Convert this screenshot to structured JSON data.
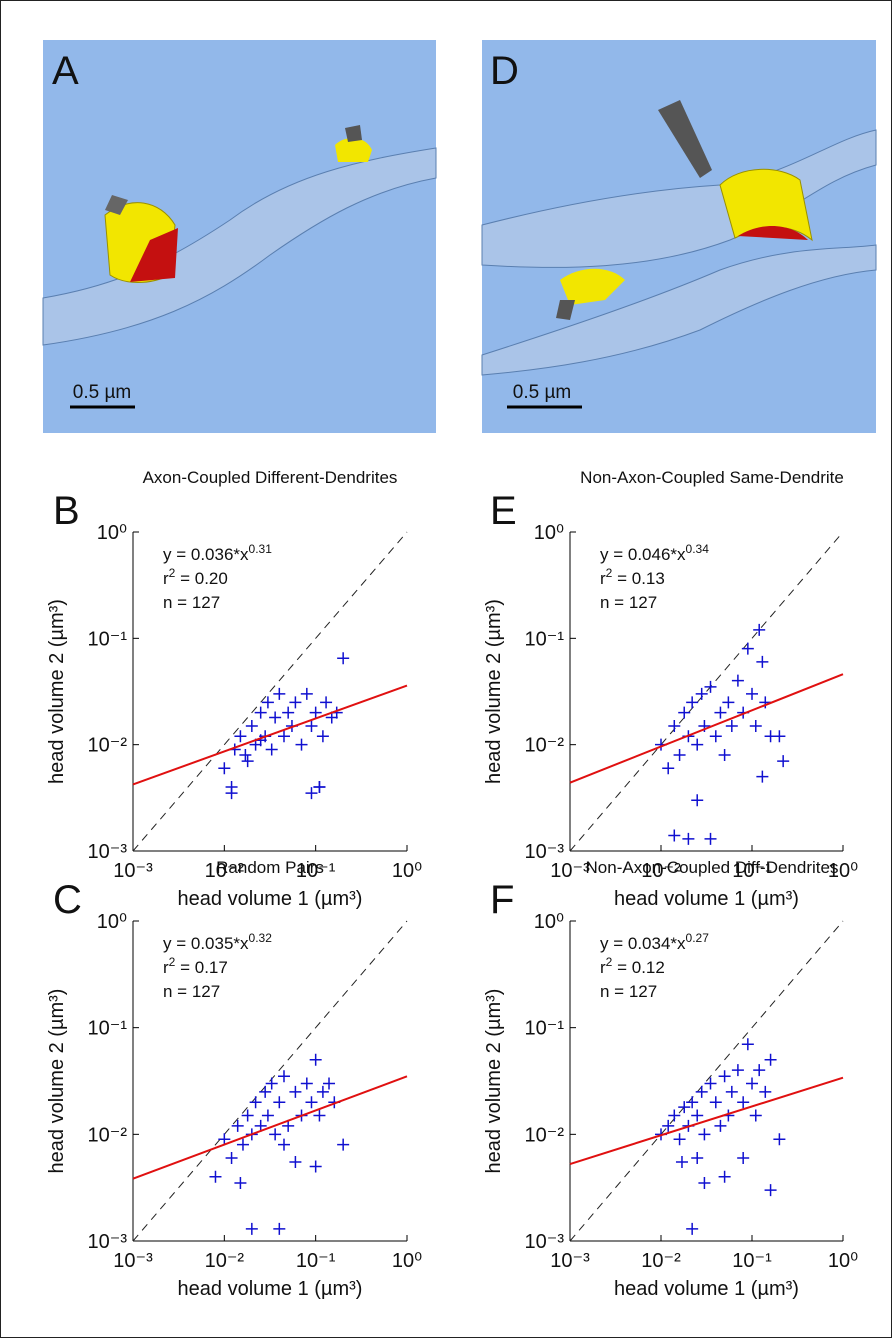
{
  "images": [
    {
      "panel": "A",
      "scale_bar": "0.5 µm"
    },
    {
      "panel": "D",
      "scale_bar": "0.5 µm"
    }
  ],
  "chart_data": [
    {
      "type": "scatter",
      "panel": "B",
      "title": "Axon-Coupled Different-Dendrites",
      "xlabel": "head volume 1 (µm³)",
      "ylabel": "head volume 2 (µm³)",
      "log_x": true,
      "log_y": true,
      "color": "#1010d0",
      "xlim": [
        0.001,
        1
      ],
      "ylim": [
        0.001,
        1
      ],
      "xticks": [
        {
          "value": 0.001,
          "label": "10⁻³"
        },
        {
          "value": 0.01,
          "label": "10⁻²"
        },
        {
          "value": 0.1,
          "label": "10⁻¹"
        },
        {
          "value": 1,
          "label": "10⁰"
        }
      ],
      "yticks": [
        {
          "value": 0.001,
          "label": "10⁻³"
        },
        {
          "value": 0.01,
          "label": "10⁻²"
        },
        {
          "value": 0.1,
          "label": "10⁻¹"
        },
        {
          "value": 1,
          "label": "10⁰"
        }
      ],
      "fit": {
        "a": 0.036,
        "b": 0.31,
        "color": "#e01010"
      },
      "diagonal": true,
      "annotations": [
        {
          "text": "y = 0.036*x",
          "sup": "0.31"
        },
        {
          "text": "r",
          "sup": "2",
          "after": "  = 0.20"
        },
        {
          "text": "n = 127"
        }
      ],
      "x": [
        0.01,
        0.012,
        0.013,
        0.015,
        0.017,
        0.02,
        0.022,
        0.025,
        0.028,
        0.03,
        0.033,
        0.036,
        0.04,
        0.045,
        0.05,
        0.055,
        0.06,
        0.07,
        0.08,
        0.09,
        0.1,
        0.11,
        0.12,
        0.13,
        0.15,
        0.17,
        0.2,
        0.012,
        0.018,
        0.025,
        0.09,
        0.11
      ],
      "values": [
        0.006,
        0.004,
        0.009,
        0.012,
        0.008,
        0.015,
        0.01,
        0.02,
        0.012,
        0.025,
        0.009,
        0.018,
        0.03,
        0.012,
        0.02,
        0.015,
        0.025,
        0.01,
        0.03,
        0.015,
        0.02,
        0.004,
        0.012,
        0.025,
        0.018,
        0.02,
        0.065,
        0.0035,
        0.007,
        0.011,
        0.0035,
        0.004
      ]
    },
    {
      "type": "scatter",
      "panel": "E",
      "title": "Non-Axon-Coupled Same-Dendrite",
      "xlabel": "head volume 1 (µm³)",
      "ylabel": "head volume 2 (µm³)",
      "log_x": true,
      "log_y": true,
      "color": "#1010d0",
      "xlim": [
        0.001,
        1
      ],
      "ylim": [
        0.001,
        1
      ],
      "xticks": [
        {
          "value": 0.001,
          "label": "10⁻³"
        },
        {
          "value": 0.01,
          "label": "10⁻²"
        },
        {
          "value": 0.1,
          "label": "10⁻¹"
        },
        {
          "value": 1,
          "label": "10⁰"
        }
      ],
      "yticks": [
        {
          "value": 0.001,
          "label": "10⁻³"
        },
        {
          "value": 0.01,
          "label": "10⁻²"
        },
        {
          "value": 0.1,
          "label": "10⁻¹"
        },
        {
          "value": 1,
          "label": "10⁰"
        }
      ],
      "fit": {
        "a": 0.046,
        "b": 0.34,
        "color": "#e01010"
      },
      "diagonal": true,
      "annotations": [
        {
          "text": "y = 0.046*x",
          "sup": "0.34"
        },
        {
          "text": "r",
          "sup": "2",
          "after": "  = 0.13"
        },
        {
          "text": "n = 127"
        }
      ],
      "x": [
        0.01,
        0.012,
        0.014,
        0.016,
        0.018,
        0.02,
        0.022,
        0.025,
        0.028,
        0.03,
        0.035,
        0.04,
        0.045,
        0.05,
        0.055,
        0.06,
        0.07,
        0.08,
        0.09,
        0.1,
        0.11,
        0.12,
        0.13,
        0.14,
        0.16,
        0.2,
        0.02,
        0.025,
        0.035,
        0.014,
        0.13,
        0.22
      ],
      "values": [
        0.01,
        0.006,
        0.015,
        0.008,
        0.02,
        0.012,
        0.025,
        0.01,
        0.03,
        0.015,
        0.035,
        0.012,
        0.02,
        0.008,
        0.025,
        0.015,
        0.04,
        0.02,
        0.08,
        0.03,
        0.015,
        0.12,
        0.06,
        0.025,
        0.012,
        0.012,
        0.0013,
        0.003,
        0.0013,
        0.0014,
        0.005,
        0.007
      ]
    },
    {
      "type": "scatter",
      "panel": "C",
      "title": "Random Pairs",
      "xlabel": "head volume 1 (µm³)",
      "ylabel": "head volume 2 (µm³)",
      "log_x": true,
      "log_y": true,
      "color": "#1010d0",
      "xlim": [
        0.001,
        1
      ],
      "ylim": [
        0.001,
        1
      ],
      "xticks": [
        {
          "value": 0.001,
          "label": "10⁻³"
        },
        {
          "value": 0.01,
          "label": "10⁻²"
        },
        {
          "value": 0.1,
          "label": "10⁻¹"
        },
        {
          "value": 1,
          "label": "10⁰"
        }
      ],
      "yticks": [
        {
          "value": 0.001,
          "label": "10⁻³"
        },
        {
          "value": 0.01,
          "label": "10⁻²"
        },
        {
          "value": 0.1,
          "label": "10⁻¹"
        },
        {
          "value": 1,
          "label": "10⁰"
        }
      ],
      "fit": {
        "a": 0.035,
        "b": 0.32,
        "color": "#e01010"
      },
      "diagonal": true,
      "annotations": [
        {
          "text": "y = 0.035*x",
          "sup": "0.32"
        },
        {
          "text": "r",
          "sup": "2",
          "after": "  = 0.17"
        },
        {
          "text": "n = 127"
        }
      ],
      "x": [
        0.008,
        0.01,
        0.012,
        0.014,
        0.016,
        0.018,
        0.02,
        0.022,
        0.025,
        0.028,
        0.03,
        0.033,
        0.036,
        0.04,
        0.045,
        0.05,
        0.06,
        0.07,
        0.08,
        0.09,
        0.1,
        0.11,
        0.12,
        0.14,
        0.16,
        0.2,
        0.02,
        0.04,
        0.015,
        0.06,
        0.1,
        0.045
      ],
      "values": [
        0.004,
        0.009,
        0.006,
        0.012,
        0.008,
        0.015,
        0.01,
        0.02,
        0.012,
        0.025,
        0.015,
        0.03,
        0.01,
        0.02,
        0.035,
        0.012,
        0.025,
        0.015,
        0.03,
        0.02,
        0.05,
        0.015,
        0.025,
        0.03,
        0.02,
        0.008,
        0.0013,
        0.0013,
        0.0035,
        0.0055,
        0.005,
        0.008
      ]
    },
    {
      "type": "scatter",
      "panel": "F",
      "title": "Non-Axon-Coupled Diff-Dendrites",
      "xlabel": "head volume 1 (µm³)",
      "ylabel": "head volume 2 (µm³)",
      "log_x": true,
      "log_y": true,
      "color": "#1010d0",
      "xlim": [
        0.001,
        1
      ],
      "ylim": [
        0.001,
        1
      ],
      "xticks": [
        {
          "value": 0.001,
          "label": "10⁻³"
        },
        {
          "value": 0.01,
          "label": "10⁻²"
        },
        {
          "value": 0.1,
          "label": "10⁻¹"
        },
        {
          "value": 1,
          "label": "10⁰"
        }
      ],
      "yticks": [
        {
          "value": 0.001,
          "label": "10⁻³"
        },
        {
          "value": 0.01,
          "label": "10⁻²"
        },
        {
          "value": 0.1,
          "label": "10⁻¹"
        },
        {
          "value": 1,
          "label": "10⁰"
        }
      ],
      "fit": {
        "a": 0.034,
        "b": 0.27,
        "color": "#e01010"
      },
      "diagonal": true,
      "annotations": [
        {
          "text": "y = 0.034*x",
          "sup": "0.27"
        },
        {
          "text": "r",
          "sup": "2",
          "after": "  = 0.12"
        },
        {
          "text": "n = 127"
        }
      ],
      "x": [
        0.01,
        0.012,
        0.014,
        0.016,
        0.018,
        0.02,
        0.022,
        0.025,
        0.028,
        0.03,
        0.035,
        0.04,
        0.045,
        0.05,
        0.055,
        0.06,
        0.07,
        0.08,
        0.09,
        0.1,
        0.11,
        0.12,
        0.14,
        0.16,
        0.2,
        0.022,
        0.03,
        0.16,
        0.017,
        0.05,
        0.08,
        0.025
      ],
      "values": [
        0.01,
        0.012,
        0.015,
        0.009,
        0.018,
        0.012,
        0.02,
        0.015,
        0.025,
        0.01,
        0.03,
        0.02,
        0.012,
        0.035,
        0.015,
        0.025,
        0.04,
        0.02,
        0.07,
        0.03,
        0.015,
        0.04,
        0.025,
        0.05,
        0.009,
        0.0013,
        0.0035,
        0.003,
        0.0055,
        0.004,
        0.006,
        0.006
      ]
    }
  ]
}
